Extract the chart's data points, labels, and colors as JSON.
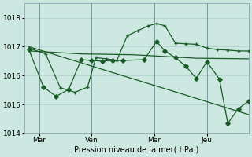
{
  "background_color": "#cce8e0",
  "grid_color": "#aacccc",
  "line_color": "#1a5c28",
  "title": "Pression niveau de la mer( hPa )",
  "ylim": [
    1014.0,
    1018.5
  ],
  "yticks": [
    1014,
    1015,
    1016,
    1017,
    1018
  ],
  "xlim": [
    -0.2,
    10.5
  ],
  "xtick_labels": [
    "Mar",
    "Ven",
    "Mer",
    "Jeu"
  ],
  "xtick_positions": [
    0.5,
    3.0,
    6.0,
    8.5
  ],
  "vlines": [
    0.5,
    3.0,
    6.0,
    8.5
  ],
  "series_diagonal": {
    "x": [
      0.0,
      10.5
    ],
    "y": [
      1017.0,
      1014.65
    ]
  },
  "series_flat": {
    "x": [
      0.0,
      2.5,
      5.0,
      6.0,
      8.0,
      10.5
    ],
    "y": [
      1016.85,
      1016.75,
      1016.72,
      1016.68,
      1016.6,
      1016.58
    ]
  },
  "series_plus": {
    "x": [
      0.0,
      0.8,
      1.5,
      2.2,
      2.8,
      3.2,
      3.7,
      4.2,
      4.7,
      5.2,
      5.7,
      6.1,
      6.5,
      7.0,
      7.5,
      8.0,
      8.5,
      9.0,
      9.5,
      10.0,
      10.5
    ],
    "y": [
      1016.95,
      1016.75,
      1015.58,
      1015.42,
      1015.6,
      1016.62,
      1016.58,
      1016.52,
      1017.38,
      1017.55,
      1017.72,
      1017.8,
      1017.72,
      1017.12,
      1017.1,
      1017.08,
      1016.95,
      1016.9,
      1016.88,
      1016.85,
      1016.85
    ]
  },
  "series_diamond": {
    "x": [
      0.0,
      0.7,
      1.3,
      1.9,
      2.5,
      3.0,
      3.5,
      4.0,
      4.5,
      5.5,
      6.1,
      6.5,
      7.0,
      7.5,
      8.0,
      8.5,
      9.1,
      9.5,
      10.0,
      10.5
    ],
    "y": [
      1016.9,
      1015.6,
      1015.28,
      1015.52,
      1016.55,
      1016.52,
      1016.5,
      1016.52,
      1016.52,
      1016.55,
      1017.18,
      1016.85,
      1016.62,
      1016.32,
      1015.9,
      1016.48,
      1015.88,
      1014.35,
      1014.85,
      1015.12
    ]
  }
}
